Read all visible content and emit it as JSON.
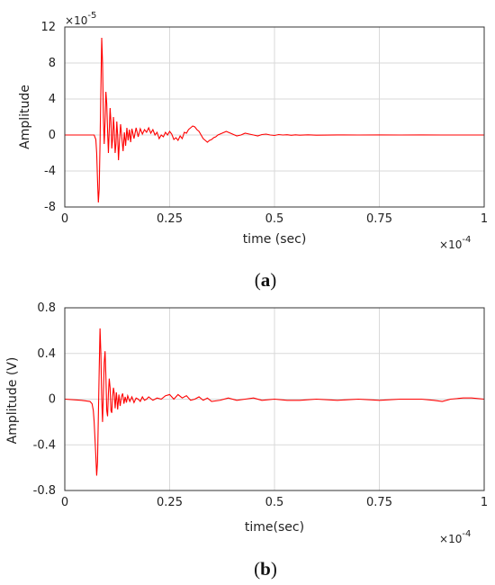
{
  "chart_data": [
    {
      "type": "line",
      "caption_letter": "a",
      "xlabel": "time (sec)",
      "ylabel": "Amplitude",
      "xlim": [
        0,
        1
      ],
      "ylim": [
        -8,
        12
      ],
      "x_multiplier_label": "10",
      "x_multiplier_exponent": "-4",
      "y_multiplier_label": "10",
      "y_multiplier_exponent": "-5",
      "x_ticks": [
        0,
        0.25,
        0.5,
        0.75,
        1
      ],
      "x_tick_labels": [
        "0",
        "0.25",
        "0.5",
        "0.75",
        "1"
      ],
      "y_ticks": [
        -8,
        -4,
        0,
        4,
        8,
        12
      ],
      "y_tick_labels": [
        "-8",
        "-4",
        "0",
        "4",
        "8",
        "12"
      ],
      "grid": true,
      "line_color": "#ff0000",
      "series": [
        {
          "x": [
            0,
            0.07,
            0.074,
            0.076,
            0.078,
            0.08,
            0.082,
            0.084,
            0.086,
            0.088,
            0.09,
            0.092,
            0.094,
            0.096,
            0.098,
            0.1,
            0.102,
            0.104,
            0.106,
            0.108,
            0.11,
            0.112,
            0.114,
            0.116,
            0.118,
            0.12,
            0.122,
            0.124,
            0.126,
            0.128,
            0.13,
            0.133,
            0.136,
            0.139,
            0.142,
            0.145,
            0.148,
            0.151,
            0.154,
            0.157,
            0.16,
            0.165,
            0.17,
            0.175,
            0.18,
            0.185,
            0.19,
            0.195,
            0.2,
            0.205,
            0.21,
            0.215,
            0.22,
            0.225,
            0.23,
            0.235,
            0.24,
            0.245,
            0.25,
            0.255,
            0.26,
            0.265,
            0.27,
            0.275,
            0.28,
            0.285,
            0.29,
            0.295,
            0.3,
            0.305,
            0.31,
            0.315,
            0.32,
            0.325,
            0.33,
            0.335,
            0.34,
            0.345,
            0.35,
            0.355,
            0.36,
            0.365,
            0.37,
            0.375,
            0.38,
            0.385,
            0.39,
            0.395,
            0.4,
            0.41,
            0.42,
            0.43,
            0.44,
            0.45,
            0.46,
            0.47,
            0.48,
            0.49,
            0.5,
            0.51,
            0.52,
            0.53,
            0.54,
            0.55,
            0.56,
            0.58,
            0.6,
            0.65,
            0.7,
            0.75,
            0.8,
            0.85,
            0.9,
            0.95,
            1.0
          ],
          "y": [
            0,
            0,
            -0.5,
            -2,
            -5,
            -7.5,
            -6,
            -1,
            5,
            10.8,
            8,
            2,
            -1,
            1.5,
            4.8,
            3.5,
            0.5,
            -2,
            0.5,
            3,
            1.5,
            -1.5,
            -0.5,
            2,
            0.5,
            -2,
            -1,
            1.5,
            0,
            -2.8,
            -1,
            1.2,
            -0.3,
            -1.8,
            0.3,
            -1.2,
            0.8,
            -0.6,
            0.6,
            -0.8,
            0.7,
            -0.4,
            0.8,
            -0.2,
            0.7,
            0.1,
            0.6,
            0.3,
            0.8,
            0.2,
            0.6,
            0.0,
            0.3,
            -0.4,
            0.0,
            -0.2,
            0.3,
            0.0,
            0.4,
            0.1,
            -0.5,
            -0.3,
            -0.6,
            -0.1,
            -0.4,
            0.3,
            0.2,
            0.6,
            0.8,
            1.0,
            0.9,
            0.6,
            0.4,
            0.0,
            -0.4,
            -0.6,
            -0.8,
            -0.6,
            -0.5,
            -0.3,
            -0.2,
            0.0,
            0.1,
            0.2,
            0.3,
            0.4,
            0.3,
            0.2,
            0.1,
            -0.1,
            0.0,
            0.2,
            0.1,
            0.0,
            -0.1,
            0.05,
            0.1,
            0.0,
            -0.05,
            0.05,
            0.0,
            0.03,
            -0.03,
            0.02,
            -0.02,
            0.02,
            -0.02,
            0.01,
            0.0,
            0.01,
            0.0,
            0.01,
            0.0,
            0.0,
            0.0
          ]
        }
      ]
    },
    {
      "type": "line",
      "caption_letter": "b",
      "xlabel": "time(sec)",
      "ylabel": "Amplitude (V)",
      "xlim": [
        0,
        1
      ],
      "ylim": [
        -0.8,
        0.8
      ],
      "x_multiplier_label": "10",
      "x_multiplier_exponent": "-4",
      "x_ticks": [
        0,
        0.25,
        0.5,
        0.75,
        1
      ],
      "x_tick_labels": [
        "0",
        "0.25",
        "0.5",
        "0.75",
        "1"
      ],
      "y_ticks": [
        -0.8,
        -0.4,
        0,
        0.4,
        0.8
      ],
      "y_tick_labels": [
        "-0.8",
        "-0.4",
        "0",
        "0.4",
        "0.8"
      ],
      "grid": true,
      "line_color": "#ff0000",
      "series": [
        {
          "x": [
            0,
            0.04,
            0.06,
            0.065,
            0.068,
            0.07,
            0.072,
            0.074,
            0.076,
            0.078,
            0.08,
            0.082,
            0.084,
            0.086,
            0.088,
            0.09,
            0.092,
            0.094,
            0.096,
            0.098,
            0.1,
            0.102,
            0.104,
            0.106,
            0.108,
            0.11,
            0.112,
            0.114,
            0.116,
            0.118,
            0.12,
            0.123,
            0.126,
            0.129,
            0.132,
            0.135,
            0.138,
            0.141,
            0.144,
            0.147,
            0.15,
            0.155,
            0.16,
            0.165,
            0.17,
            0.175,
            0.18,
            0.185,
            0.19,
            0.195,
            0.2,
            0.21,
            0.22,
            0.23,
            0.24,
            0.25,
            0.26,
            0.27,
            0.28,
            0.29,
            0.3,
            0.31,
            0.32,
            0.33,
            0.34,
            0.35,
            0.37,
            0.39,
            0.41,
            0.43,
            0.45,
            0.47,
            0.5,
            0.53,
            0.56,
            0.6,
            0.65,
            0.7,
            0.75,
            0.8,
            0.85,
            0.88,
            0.9,
            0.92,
            0.95,
            0.97,
            1.0
          ],
          "y": [
            0,
            -0.01,
            -0.02,
            -0.04,
            -0.1,
            -0.2,
            -0.35,
            -0.5,
            -0.67,
            -0.55,
            -0.15,
            0.25,
            0.62,
            0.4,
            0.0,
            -0.2,
            0.05,
            0.32,
            0.42,
            0.2,
            -0.1,
            -0.15,
            0.05,
            0.18,
            0.1,
            -0.1,
            -0.12,
            0.02,
            0.1,
            0.05,
            -0.08,
            0.06,
            -0.09,
            0.04,
            -0.06,
            0.02,
            0.05,
            -0.04,
            0.02,
            -0.03,
            0.03,
            -0.02,
            0.02,
            -0.03,
            0.01,
            0.0,
            -0.02,
            0.02,
            -0.01,
            0.0,
            0.02,
            -0.01,
            0.01,
            0.0,
            0.03,
            0.04,
            0.0,
            0.04,
            0.01,
            0.03,
            -0.01,
            0.0,
            0.02,
            -0.01,
            0.01,
            -0.02,
            -0.01,
            0.01,
            -0.01,
            0.0,
            0.01,
            -0.01,
            0.0,
            -0.01,
            -0.01,
            0.0,
            -0.01,
            0.0,
            -0.01,
            0.0,
            0.0,
            -0.01,
            -0.02,
            0.0,
            0.01,
            0.01,
            0.0
          ]
        }
      ]
    }
  ]
}
